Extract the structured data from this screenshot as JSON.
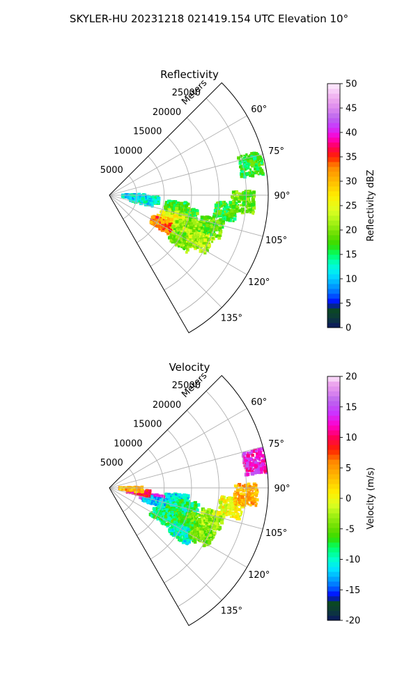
{
  "figure": {
    "title": "SKYLER-HU  20231218  021419.154 UTC Elevation 10°"
  },
  "chart_data": [
    {
      "type": "heatmap",
      "projection": "polar-sector",
      "title": "Reflectivity",
      "radial_label": "Meters",
      "radial_ticks": [
        "5000",
        "10000",
        "15000",
        "20000",
        "25000"
      ],
      "radial_tick_values": [
        5000,
        10000,
        15000,
        20000,
        25000
      ],
      "radial_range": [
        0,
        29000
      ],
      "azimuth_ticks": [
        "60°",
        "75°",
        "90°",
        "105°",
        "120°",
        "135°"
      ],
      "azimuth_tick_values": [
        60,
        75,
        90,
        105,
        120,
        135
      ],
      "azimuth_range": [
        45,
        150
      ],
      "grid": true,
      "colorbar": {
        "label": "Reflectivity dBZ",
        "range": [
          0,
          50
        ],
        "ticks": [
          "0",
          "5",
          "10",
          "15",
          "20",
          "25",
          "30",
          "35",
          "40",
          "45",
          "50"
        ],
        "stops": [
          {
            "v": 0,
            "c": "#0a1560"
          },
          {
            "v": 2,
            "c": "#0d3a3a"
          },
          {
            "v": 4,
            "c": "#0a4a1f"
          },
          {
            "v": 5,
            "c": "#0000ff"
          },
          {
            "v": 7,
            "c": "#0066ff"
          },
          {
            "v": 9,
            "c": "#00aaff"
          },
          {
            "v": 11,
            "c": "#00e5ff"
          },
          {
            "v": 13,
            "c": "#00ffcc"
          },
          {
            "v": 15,
            "c": "#00ff66"
          },
          {
            "v": 17,
            "c": "#33dd00"
          },
          {
            "v": 19,
            "c": "#66dd00"
          },
          {
            "v": 21,
            "c": "#99ee11"
          },
          {
            "v": 24,
            "c": "#ddff22"
          },
          {
            "v": 27,
            "c": "#ffee00"
          },
          {
            "v": 30,
            "c": "#ffbb00"
          },
          {
            "v": 33,
            "c": "#ff8800"
          },
          {
            "v": 35,
            "c": "#ff2200"
          },
          {
            "v": 37,
            "c": "#ff0055"
          },
          {
            "v": 39,
            "c": "#ff00cc"
          },
          {
            "v": 41,
            "c": "#cc33ff"
          },
          {
            "v": 43,
            "c": "#bb66ee"
          },
          {
            "v": 45,
            "c": "#dd88ee"
          },
          {
            "v": 47,
            "c": "#eeaaee"
          },
          {
            "v": 50,
            "c": "#ffeeff"
          }
        ]
      },
      "echo_cells": [
        {
          "az": 100,
          "r": 12500,
          "v": 16
        },
        {
          "az": 104,
          "r": 14500,
          "v": 18
        },
        {
          "az": 108,
          "r": 13000,
          "v": 22
        },
        {
          "az": 112,
          "r": 12000,
          "v": 25
        },
        {
          "az": 116,
          "r": 11500,
          "v": 28
        },
        {
          "az": 119,
          "r": 11000,
          "v": 33
        },
        {
          "az": 114,
          "r": 15000,
          "v": 21
        },
        {
          "az": 111,
          "r": 17000,
          "v": 20
        },
        {
          "az": 107,
          "r": 19500,
          "v": 19
        },
        {
          "az": 118,
          "r": 16500,
          "v": 23
        },
        {
          "az": 122,
          "r": 15500,
          "v": 20
        },
        {
          "az": 96,
          "r": 7000,
          "v": 14
        },
        {
          "az": 100,
          "r": 6000,
          "v": 12
        },
        {
          "az": 93,
          "r": 4500,
          "v": 11
        },
        {
          "az": 98,
          "r": 21500,
          "v": 17
        },
        {
          "az": 93,
          "r": 24500,
          "v": 19
        },
        {
          "az": 78,
          "r": 26500,
          "v": 17
        },
        {
          "az": 117,
          "r": 18500,
          "v": 22
        }
      ]
    },
    {
      "type": "heatmap",
      "projection": "polar-sector",
      "title": "Velocity",
      "radial_label": "Meters",
      "radial_ticks": [
        "5000",
        "10000",
        "15000",
        "20000",
        "25000"
      ],
      "radial_tick_values": [
        5000,
        10000,
        15000,
        20000,
        25000
      ],
      "radial_range": [
        0,
        29000
      ],
      "azimuth_ticks": [
        "60°",
        "75°",
        "90°",
        "105°",
        "120°",
        "135°"
      ],
      "azimuth_tick_values": [
        60,
        75,
        90,
        105,
        120,
        135
      ],
      "azimuth_range": [
        45,
        150
      ],
      "grid": true,
      "colorbar": {
        "label": "Velocity (m/s)",
        "range": [
          -20,
          20
        ],
        "ticks": [
          "-20",
          "-15",
          "-10",
          "-5",
          "0",
          "5",
          "10",
          "15",
          "20"
        ],
        "stops": [
          {
            "v": -20,
            "c": "#0a1560"
          },
          {
            "v": -18.5,
            "c": "#0d3a3a"
          },
          {
            "v": -17,
            "c": "#0a4a1f"
          },
          {
            "v": -16,
            "c": "#0000ff"
          },
          {
            "v": -14.5,
            "c": "#0066ff"
          },
          {
            "v": -13,
            "c": "#00aaff"
          },
          {
            "v": -11.5,
            "c": "#00e5ff"
          },
          {
            "v": -10,
            "c": "#00ffcc"
          },
          {
            "v": -8,
            "c": "#00ff66"
          },
          {
            "v": -6.5,
            "c": "#33dd00"
          },
          {
            "v": -5,
            "c": "#66dd00"
          },
          {
            "v": -3,
            "c": "#99ee11"
          },
          {
            "v": -1,
            "c": "#ddff22"
          },
          {
            "v": 1,
            "c": "#ffee00"
          },
          {
            "v": 3.5,
            "c": "#ffbb00"
          },
          {
            "v": 6,
            "c": "#ff8800"
          },
          {
            "v": 8,
            "c": "#ff2200"
          },
          {
            "v": 10,
            "c": "#ff0055"
          },
          {
            "v": 12,
            "c": "#ff00cc"
          },
          {
            "v": 14,
            "c": "#cc33ff"
          },
          {
            "v": 16,
            "c": "#bb66ee"
          },
          {
            "v": 17.5,
            "c": "#dd88ee"
          },
          {
            "v": 19,
            "c": "#eeaaee"
          },
          {
            "v": 20,
            "c": "#ffeeff"
          }
        ]
      },
      "echo_cells": [
        {
          "az": 100,
          "r": 12500,
          "v": -11
        },
        {
          "az": 104,
          "r": 14500,
          "v": -8
        },
        {
          "az": 108,
          "r": 13000,
          "v": -9
        },
        {
          "az": 112,
          "r": 12000,
          "v": -7
        },
        {
          "az": 116,
          "r": 11500,
          "v": -9
        },
        {
          "az": 119,
          "r": 11000,
          "v": -8
        },
        {
          "az": 114,
          "r": 15000,
          "v": -6
        },
        {
          "az": 111,
          "r": 17000,
          "v": -5
        },
        {
          "az": 107,
          "r": 19500,
          "v": -3
        },
        {
          "az": 118,
          "r": 16500,
          "v": -6
        },
        {
          "az": 122,
          "r": 15500,
          "v": -10
        },
        {
          "az": 103,
          "r": 8000,
          "v": 14
        },
        {
          "az": 106,
          "r": 8500,
          "v": -12
        },
        {
          "az": 98,
          "r": 5500,
          "v": 10
        },
        {
          "az": 93,
          "r": 4000,
          "v": 4
        },
        {
          "az": 99,
          "r": 22500,
          "v": 0
        },
        {
          "az": 93,
          "r": 25000,
          "v": 4
        },
        {
          "az": 80,
          "r": 27000,
          "v": 13
        },
        {
          "az": 117,
          "r": 19000,
          "v": -4
        }
      ]
    }
  ]
}
